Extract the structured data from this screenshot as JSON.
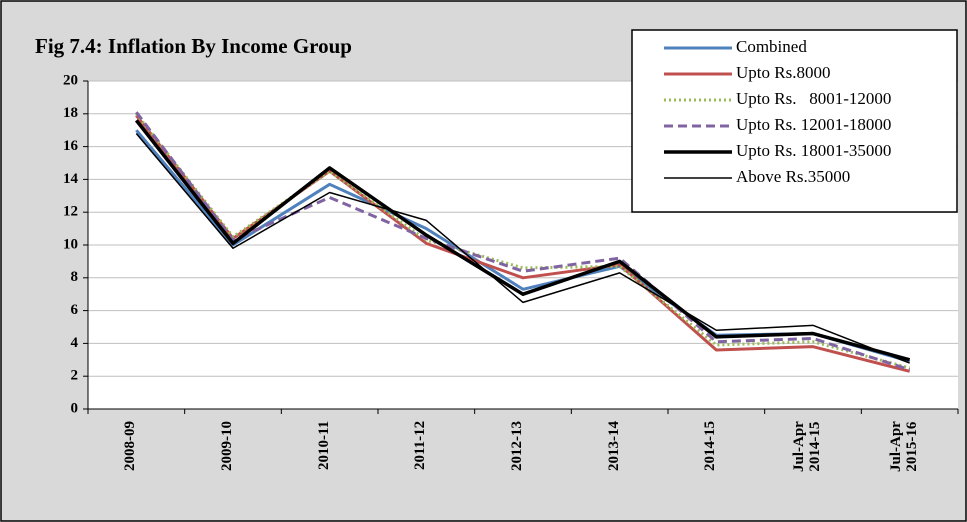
{
  "chart_data": {
    "type": "line",
    "title": "Fig 7.4: Inflation By Income Group",
    "categories": [
      "2008-09",
      "2009-10",
      "2010-11",
      "2011-12",
      "2012-13",
      "2013-14",
      "2014-15",
      "Jul-Apr\n2014-15",
      "Jul-Apr\n2015-16"
    ],
    "series": [
      {
        "name": "Combined",
        "color": "#4f81bd",
        "dash": "solid",
        "width": 3,
        "values": [
          17.0,
          10.0,
          13.7,
          11.0,
          7.3,
          8.7,
          4.5,
          4.6,
          2.9
        ]
      },
      {
        "name": "Upto Rs.8000",
        "color": "#c0504d",
        "dash": "solid",
        "width": 3,
        "values": [
          17.9,
          10.4,
          14.5,
          10.1,
          8.0,
          8.8,
          3.6,
          3.8,
          2.3
        ]
      },
      {
        "name": "Upto Rs.   8001-12000",
        "color": "#9bbb59",
        "dash": "dotted",
        "width": 3,
        "values": [
          18.0,
          10.5,
          14.5,
          10.3,
          8.6,
          8.7,
          3.9,
          4.1,
          2.5
        ]
      },
      {
        "name": "Upto Rs. 12001-18000",
        "color": "#8064a2",
        "dash": "dashed",
        "width": 3,
        "values": [
          18.1,
          10.3,
          12.9,
          10.4,
          8.4,
          9.2,
          4.1,
          4.3,
          2.4
        ]
      },
      {
        "name": "Upto Rs. 18001-35000",
        "color": "#000000",
        "dash": "solid",
        "width": 3.5,
        "values": [
          17.6,
          10.1,
          14.7,
          10.6,
          7.0,
          9.0,
          4.4,
          4.6,
          3.0
        ]
      },
      {
        "name": "Above Rs.35000",
        "color": "#000000",
        "dash": "solid",
        "width": 1.5,
        "values": [
          16.8,
          9.8,
          13.2,
          11.5,
          6.5,
          8.3,
          4.8,
          5.1,
          2.8
        ]
      }
    ],
    "ylim": [
      0,
      20
    ],
    "yticks": [
      0,
      2,
      4,
      6,
      8,
      10,
      12,
      14,
      16,
      18,
      20
    ],
    "grid": true,
    "legend": "top-right"
  }
}
